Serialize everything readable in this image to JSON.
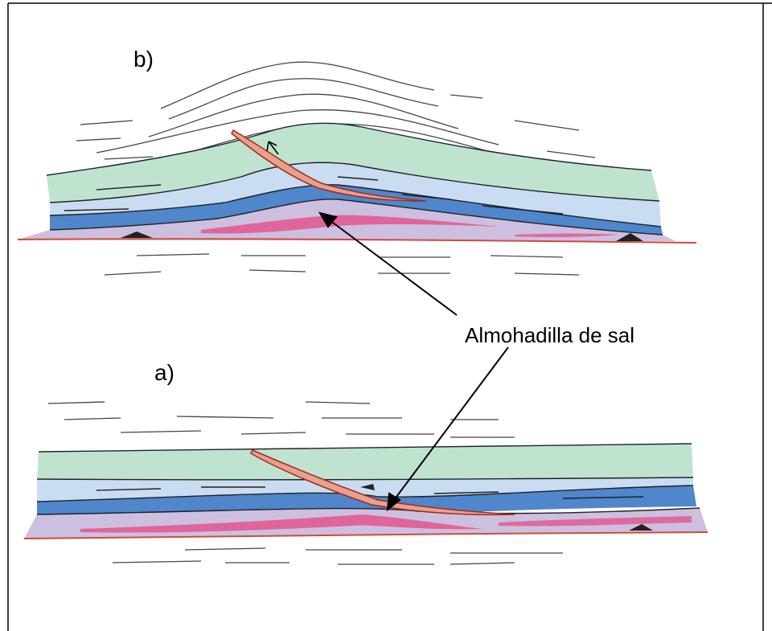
{
  "labels": {
    "panel_b": "b)",
    "panel_a": "a)",
    "annotation": "Almohadilla de sal"
  },
  "colors": {
    "green": "#bfe3cf",
    "light_blue": "#c9dcf2",
    "blue": "#4f86cc",
    "purple": "#cdbfdf",
    "pink": "#e2558e",
    "red_line": "#d24a3a",
    "fault_fill": "#e9a08d",
    "ink": "#000000"
  }
}
